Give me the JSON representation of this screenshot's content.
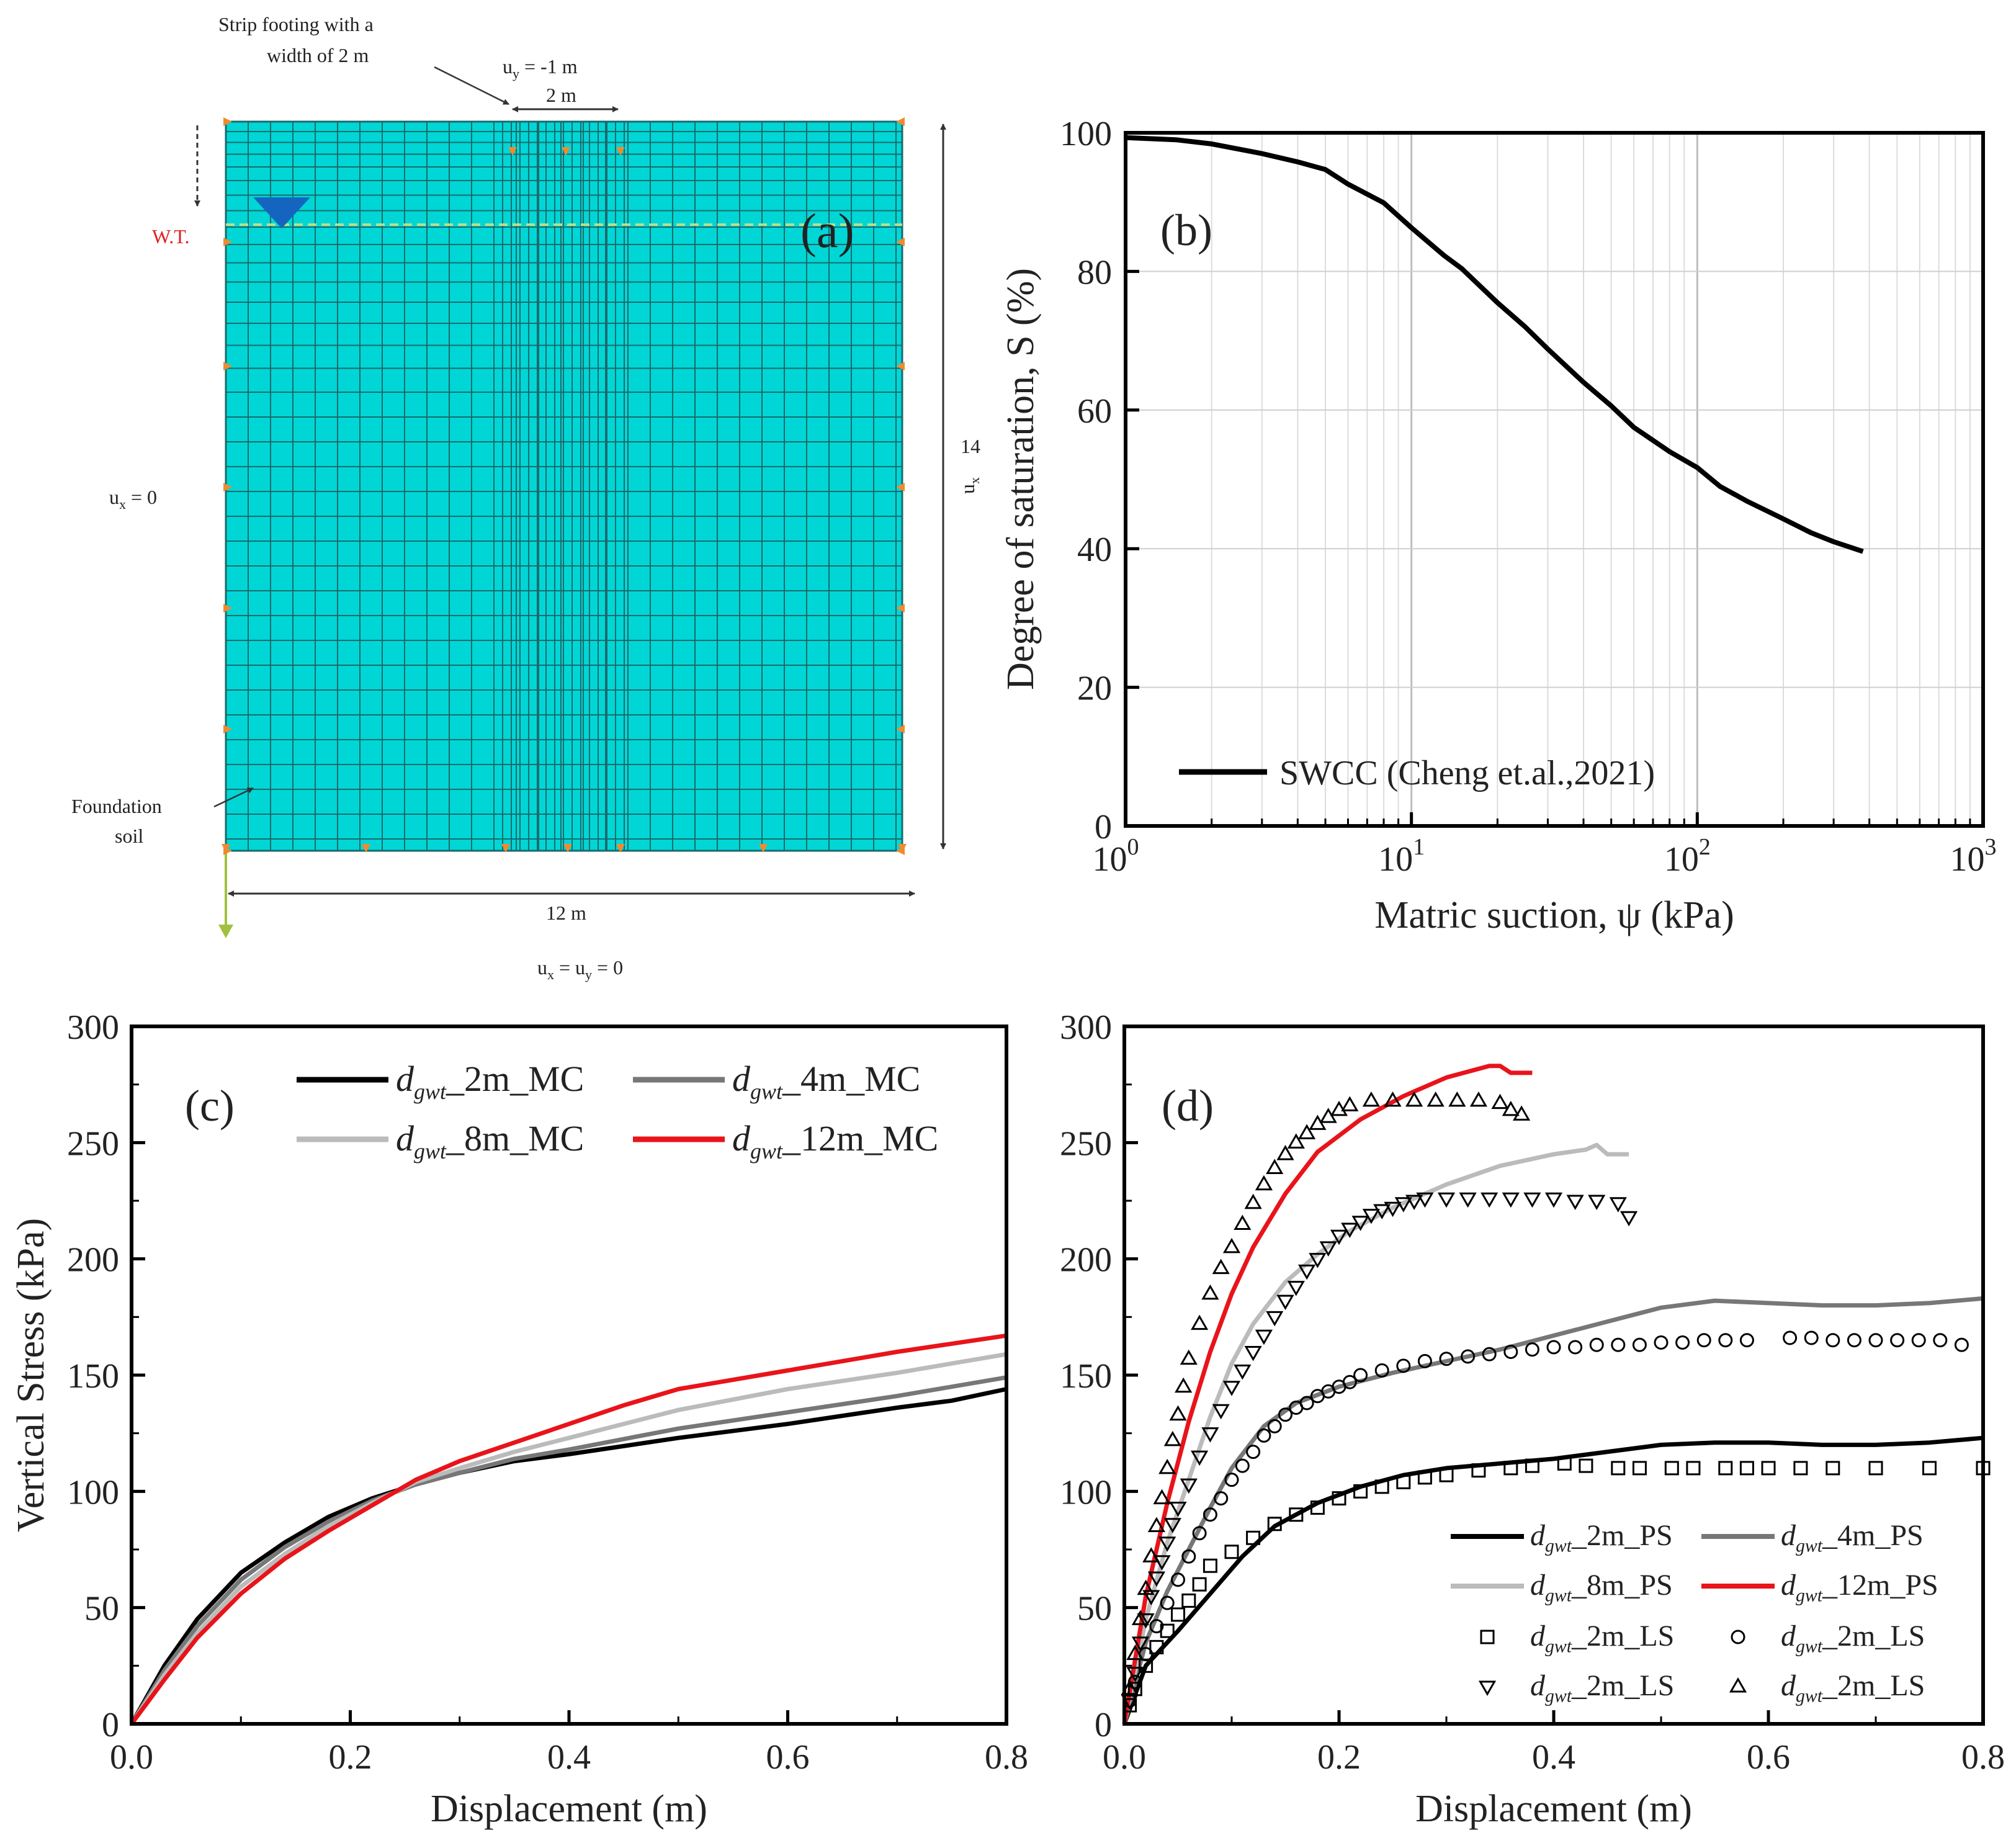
{
  "panel_a": {
    "panel_label": "(a)",
    "footing_label_line1": "Strip footing with a",
    "footing_label_line2": "width of 2 m",
    "uy_label": "u",
    "uy_sub": "y",
    "uy_value": " = -1 m",
    "footing_width": "2 m",
    "wt_label": "W.T.",
    "ux_left_label": "u",
    "ux_left_sub": "x",
    "ux_left_value": " = 0",
    "height_value": "14",
    "height_u": "u",
    "height_sub": "x",
    "foundation_line1": "Foundation",
    "foundation_line2": "soil",
    "width_label": "12 m",
    "bottom_bc_u1": "u",
    "bottom_bc_sub1": "x",
    "bottom_bc_eq": " = u",
    "bottom_bc_sub2": "y",
    "bottom_bc_end": " = 0",
    "mesh_color": "#00d6d6",
    "line_color": "#1a6a6a"
  },
  "chart_data": [
    {
      "id": "b",
      "type": "line",
      "panel_label": "(b)",
      "xlabel": "Matric suction, ψ (kPa)",
      "ylabel": "Degree of saturation, S (%)",
      "xscale": "log",
      "xlim": [
        1,
        1000
      ],
      "ylim": [
        0,
        100
      ],
      "xticks": [
        {
          "base": "10",
          "exp": "0",
          "value": 1
        },
        {
          "base": "10",
          "exp": "1",
          "value": 10
        },
        {
          "base": "10",
          "exp": "2",
          "value": 100
        },
        {
          "base": "10",
          "exp": "3",
          "value": 1000
        }
      ],
      "yticks": [
        "0",
        "20",
        "40",
        "60",
        "80",
        "100"
      ],
      "grid": true,
      "legend": "bottom-left",
      "series": [
        {
          "name": "SWCC (Cheng et.al.,2021)",
          "color": "#000000",
          "x": [
            1,
            1.5,
            2,
            3,
            4,
            5,
            6,
            8,
            10,
            13,
            15,
            20,
            25,
            30,
            40,
            50,
            60,
            80,
            100,
            120,
            150,
            200,
            250,
            300,
            380
          ],
          "y": [
            99.3,
            99.0,
            98.4,
            97.0,
            95.8,
            94.7,
            92.6,
            89.9,
            86.3,
            82.3,
            80.4,
            75.5,
            72.0,
            68.8,
            64.0,
            60.6,
            57.5,
            54.0,
            51.7,
            49.0,
            46.8,
            44.3,
            42.3,
            41.0,
            39.6
          ]
        }
      ]
    },
    {
      "id": "c",
      "type": "line",
      "panel_label": "(c)",
      "xlabel": "Displacement (m)",
      "ylabel": "Vertical Stress (kPa)",
      "xlim": [
        0,
        0.8
      ],
      "ylim": [
        0,
        300
      ],
      "xticks": [
        "0.0",
        "0.2",
        "0.4",
        "0.6",
        "0.8"
      ],
      "yticks": [
        "0",
        "50",
        "100",
        "150",
        "200",
        "250",
        "300"
      ],
      "legend": "top",
      "series": [
        {
          "name": "d",
          "sub": "gwt",
          "suffix": "_2m_MC",
          "color": "#000000",
          "x": [
            0,
            0.03,
            0.06,
            0.1,
            0.14,
            0.18,
            0.22,
            0.26,
            0.3,
            0.35,
            0.4,
            0.5,
            0.6,
            0.7,
            0.75,
            0.8
          ],
          "y": [
            0,
            25,
            45,
            65,
            78,
            89,
            97,
            103,
            108,
            113,
            116,
            123,
            129,
            136,
            139,
            144
          ]
        },
        {
          "name": "d",
          "sub": "gwt",
          "suffix": "_4m_MC",
          "color": "#777777",
          "x": [
            0,
            0.03,
            0.06,
            0.1,
            0.14,
            0.18,
            0.22,
            0.26,
            0.3,
            0.35,
            0.4,
            0.5,
            0.6,
            0.7,
            0.8
          ],
          "y": [
            0,
            23,
            42,
            62,
            76,
            87,
            96,
            103,
            108,
            114,
            118,
            127,
            134,
            141,
            149
          ]
        },
        {
          "name": "d",
          "sub": "gwt",
          "suffix": "_8m_MC",
          "color": "#bbbbbb",
          "x": [
            0,
            0.03,
            0.06,
            0.1,
            0.14,
            0.18,
            0.22,
            0.26,
            0.3,
            0.35,
            0.4,
            0.5,
            0.6,
            0.7,
            0.8
          ],
          "y": [
            0,
            21,
            39,
            59,
            73,
            85,
            95,
            104,
            110,
            117,
            123,
            135,
            144,
            151,
            159
          ]
        },
        {
          "name": "d",
          "sub": "gwt",
          "suffix": "_12m_MC",
          "color": "#e8141a",
          "x": [
            0,
            0.03,
            0.06,
            0.1,
            0.14,
            0.18,
            0.22,
            0.26,
            0.3,
            0.35,
            0.4,
            0.45,
            0.5,
            0.6,
            0.7,
            0.8
          ],
          "y": [
            0,
            19,
            37,
            56,
            71,
            83,
            94,
            105,
            113,
            121,
            129,
            137,
            144,
            152,
            160,
            167
          ]
        }
      ]
    },
    {
      "id": "d",
      "type": "line",
      "panel_label": "(d)",
      "xlabel": "Displacement (m)",
      "ylabel": "",
      "xlim": [
        0,
        0.8
      ],
      "ylim": [
        0,
        300
      ],
      "xticks": [
        "0.0",
        "0.2",
        "0.4",
        "0.6",
        "0.8"
      ],
      "yticks": [
        "0",
        "50",
        "100",
        "150",
        "200",
        "250",
        "300"
      ],
      "legend": "bottom-right",
      "series": [
        {
          "name": "d",
          "sub": "gwt",
          "suffix": "_2m_PS",
          "color": "#000000",
          "kind": "line",
          "x": [
            0,
            0.02,
            0.05,
            0.08,
            0.11,
            0.14,
            0.18,
            0.22,
            0.26,
            0.3,
            0.35,
            0.4,
            0.45,
            0.5,
            0.55,
            0.6,
            0.65,
            0.7,
            0.75,
            0.8
          ],
          "y": [
            0,
            25,
            40,
            56,
            72,
            85,
            95,
            102,
            107,
            110,
            112,
            114,
            117,
            120,
            121,
            121,
            120,
            120,
            121,
            123
          ]
        },
        {
          "name": "d",
          "sub": "gwt",
          "suffix": "_4m_PS",
          "color": "#777777",
          "kind": "line",
          "x": [
            0,
            0.02,
            0.04,
            0.06,
            0.08,
            0.1,
            0.13,
            0.16,
            0.2,
            0.25,
            0.3,
            0.35,
            0.4,
            0.45,
            0.5,
            0.55,
            0.6,
            0.65,
            0.7,
            0.75,
            0.8
          ],
          "y": [
            0,
            35,
            57,
            75,
            93,
            110,
            128,
            138,
            145,
            151,
            156,
            161,
            167,
            173,
            179,
            182,
            181,
            180,
            180,
            181,
            183
          ]
        },
        {
          "name": "d",
          "sub": "gwt",
          "suffix": "_8m_PS",
          "color": "#bbbbbb",
          "kind": "line",
          "x": [
            0,
            0.02,
            0.04,
            0.06,
            0.08,
            0.1,
            0.12,
            0.15,
            0.18,
            0.21,
            0.25,
            0.3,
            0.35,
            0.4,
            0.43,
            0.44,
            0.45,
            0.46,
            0.47
          ],
          "y": [
            0,
            45,
            78,
            105,
            132,
            155,
            172,
            190,
            202,
            212,
            222,
            232,
            240,
            245,
            247,
            249,
            245,
            245,
            245
          ]
        },
        {
          "name": "d",
          "sub": "gwt",
          "suffix": "_12m_PS",
          "color": "#e8141a",
          "kind": "line",
          "x": [
            0,
            0.02,
            0.04,
            0.06,
            0.08,
            0.1,
            0.12,
            0.15,
            0.18,
            0.22,
            0.26,
            0.3,
            0.34,
            0.35,
            0.36,
            0.37,
            0.38
          ],
          "y": [
            0,
            55,
            95,
            130,
            160,
            185,
            205,
            228,
            246,
            260,
            270,
            278,
            283,
            283,
            280,
            280,
            280
          ]
        },
        {
          "name": "d",
          "sub": "gwt",
          "suffix": "_2m_LS",
          "color": "#000000",
          "kind": "marker",
          "marker": "square",
          "x": [
            0.005,
            0.01,
            0.02,
            0.03,
            0.04,
            0.05,
            0.06,
            0.07,
            0.08,
            0.1,
            0.12,
            0.14,
            0.16,
            0.18,
            0.2,
            0.22,
            0.24,
            0.26,
            0.28,
            0.3,
            0.33,
            0.36,
            0.38,
            0.41,
            0.43,
            0.46,
            0.48,
            0.51,
            0.53,
            0.56,
            0.58,
            0.6,
            0.63,
            0.66,
            0.7,
            0.75,
            0.8
          ],
          "y": [
            8,
            15,
            25,
            33,
            40,
            47,
            53,
            60,
            68,
            74,
            80,
            86,
            90,
            93,
            97,
            100,
            102,
            104,
            106,
            107,
            109,
            110,
            111,
            112,
            111,
            110,
            110,
            110,
            110,
            110,
            110,
            110,
            110,
            110,
            110,
            110,
            110
          ]
        },
        {
          "name": "d",
          "sub": "gwt",
          "suffix": "_2m_LS",
          "color": "#000000",
          "kind": "marker",
          "marker": "circle",
          "x": [
            0.005,
            0.01,
            0.02,
            0.03,
            0.04,
            0.05,
            0.06,
            0.07,
            0.08,
            0.09,
            0.1,
            0.11,
            0.12,
            0.13,
            0.14,
            0.15,
            0.16,
            0.17,
            0.18,
            0.19,
            0.2,
            0.21,
            0.22,
            0.24,
            0.26,
            0.28,
            0.3,
            0.32,
            0.34,
            0.36,
            0.38,
            0.4,
            0.42,
            0.44,
            0.46,
            0.48,
            0.5,
            0.52,
            0.54,
            0.56,
            0.58,
            0.62,
            0.64,
            0.66,
            0.68,
            0.7,
            0.72,
            0.74,
            0.76,
            0.78
          ],
          "y": [
            10,
            18,
            30,
            42,
            52,
            62,
            72,
            82,
            90,
            97,
            105,
            111,
            117,
            124,
            128,
            133,
            136,
            138,
            141,
            143,
            145,
            147,
            150,
            152,
            154,
            156,
            157,
            158,
            159,
            160,
            161,
            162,
            162,
            163,
            163,
            163,
            164,
            164,
            165,
            165,
            165,
            166,
            166,
            165,
            165,
            165,
            165,
            165,
            165,
            163
          ]
        },
        {
          "name": "d",
          "sub": "gwt",
          "suffix": "_2m_LS",
          "color": "#000000",
          "kind": "marker",
          "marker": "triangle-down",
          "x": [
            0.005,
            0.01,
            0.015,
            0.02,
            0.025,
            0.03,
            0.035,
            0.04,
            0.045,
            0.05,
            0.06,
            0.07,
            0.08,
            0.09,
            0.1,
            0.11,
            0.12,
            0.13,
            0.14,
            0.15,
            0.16,
            0.17,
            0.18,
            0.19,
            0.2,
            0.21,
            0.22,
            0.23,
            0.24,
            0.25,
            0.26,
            0.27,
            0.28,
            0.3,
            0.32,
            0.34,
            0.36,
            0.38,
            0.4,
            0.42,
            0.44,
            0.46,
            0.47
          ],
          "y": [
            10,
            22,
            35,
            45,
            55,
            63,
            70,
            78,
            86,
            93,
            103,
            115,
            125,
            135,
            145,
            152,
            160,
            167,
            175,
            182,
            188,
            195,
            200,
            205,
            210,
            213,
            216,
            219,
            221,
            222,
            224,
            225,
            226,
            226,
            226,
            226,
            226,
            226,
            226,
            225,
            225,
            224,
            218
          ]
        },
        {
          "name": "d",
          "sub": "gwt",
          "suffix": "_2m_LS",
          "color": "#000000",
          "kind": "marker",
          "marker": "triangle-up",
          "x": [
            0.005,
            0.01,
            0.015,
            0.02,
            0.025,
            0.03,
            0.035,
            0.04,
            0.045,
            0.05,
            0.055,
            0.06,
            0.07,
            0.08,
            0.09,
            0.1,
            0.11,
            0.12,
            0.13,
            0.14,
            0.15,
            0.16,
            0.17,
            0.18,
            0.19,
            0.2,
            0.21,
            0.23,
            0.25,
            0.27,
            0.29,
            0.31,
            0.33,
            0.35,
            0.36,
            0.37
          ],
          "y": [
            15,
            30,
            45,
            58,
            72,
            85,
            97,
            110,
            122,
            133,
            145,
            157,
            172,
            185,
            196,
            205,
            215,
            224,
            232,
            239,
            245,
            250,
            254,
            258,
            261,
            264,
            266,
            268,
            268,
            268,
            268,
            268,
            268,
            267,
            264,
            262
          ]
        }
      ]
    }
  ]
}
